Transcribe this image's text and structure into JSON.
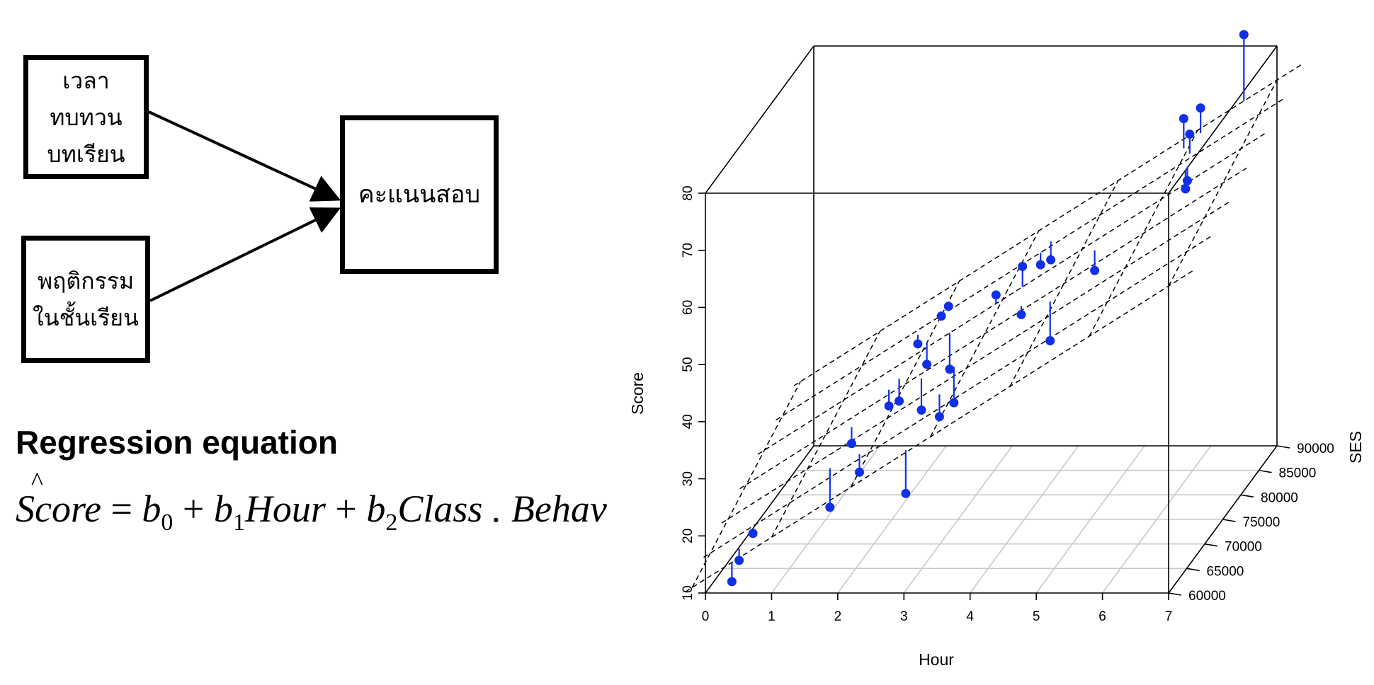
{
  "diagram": {
    "nodes": [
      {
        "id": "study_time",
        "lines": [
          "เวลา",
          "ทบทวน",
          "บทเรียน"
        ]
      },
      {
        "id": "class_behavior",
        "lines": [
          "พฤติกรรม",
          "ในชั้นเรียน"
        ]
      },
      {
        "id": "exam_score",
        "lines": [
          "คะแนนสอบ"
        ]
      }
    ],
    "edges": [
      {
        "from": "study_time",
        "to": "exam_score"
      },
      {
        "from": "class_behavior",
        "to": "exam_score"
      }
    ]
  },
  "equation": {
    "title": "Regression equation",
    "lhs": "Score",
    "equals": "=",
    "b0": "b",
    "b0_sub": "0",
    "plus1": "+",
    "b1": "b",
    "b1_sub": "1",
    "term1": "Hour",
    "plus2": "+",
    "b2": "b",
    "b2_sub": "2",
    "term2": "Class . Behav"
  },
  "chart_data": {
    "type": "scatter",
    "title": "",
    "xlabel": "Hour",
    "ylabel": "SES",
    "zlabel": "Score",
    "xlim": [
      0,
      7
    ],
    "ylim": [
      60000,
      90000
    ],
    "zlim": [
      10,
      80
    ],
    "x_ticks": [
      "0",
      "1",
      "2",
      "3",
      "4",
      "5",
      "6",
      "7"
    ],
    "y_ticks": [
      "60000",
      "65000",
      "70000",
      "75000",
      "80000",
      "85000",
      "90000"
    ],
    "z_ticks": [
      "10",
      "20",
      "30",
      "40",
      "50",
      "60",
      "70",
      "80"
    ],
    "point_color": "#1030e8",
    "regression_plane": true,
    "points": [
      {
        "x": 0.4,
        "y": 62000,
        "z": 14
      },
      {
        "x": 0.4,
        "y": 60000,
        "z": 12
      },
      {
        "x": 0.5,
        "y": 64000,
        "z": 17
      },
      {
        "x": 1.5,
        "y": 67000,
        "z": 19
      },
      {
        "x": 1.5,
        "y": 73000,
        "z": 25
      },
      {
        "x": 2.0,
        "y": 66000,
        "z": 26
      },
      {
        "x": 1.9,
        "y": 76000,
        "z": 29
      },
      {
        "x": 2.0,
        "y": 77000,
        "z": 29
      },
      {
        "x": 1.9,
        "y": 84000,
        "z": 33
      },
      {
        "x": 2.2,
        "y": 81000,
        "z": 32
      },
      {
        "x": 2.2,
        "y": 85000,
        "z": 37
      },
      {
        "x": 2.2,
        "y": 87000,
        "z": 37
      },
      {
        "x": 2.5,
        "y": 74000,
        "z": 30
      },
      {
        "x": 2.6,
        "y": 80000,
        "z": 32
      },
      {
        "x": 3.0,
        "y": 60500,
        "z": 27
      },
      {
        "x": 3.1,
        "y": 72000,
        "z": 33
      },
      {
        "x": 3.1,
        "y": 68000,
        "z": 34
      },
      {
        "x": 3.7,
        "y": 80000,
        "z": 50
      },
      {
        "x": 3.7,
        "y": 85000,
        "z": 46
      },
      {
        "x": 3.8,
        "y": 86000,
        "z": 46
      },
      {
        "x": 3.9,
        "y": 76000,
        "z": 45
      },
      {
        "x": 3.3,
        "y": 80000,
        "z": 45
      },
      {
        "x": 4.5,
        "y": 73000,
        "z": 43
      },
      {
        "x": 4.9,
        "y": 78000,
        "z": 51
      },
      {
        "x": 5.7,
        "y": 88000,
        "z": 69
      },
      {
        "x": 5.9,
        "y": 86000,
        "z": 68
      },
      {
        "x": 5.9,
        "y": 89000,
        "z": 70
      },
      {
        "x": 6.0,
        "y": 83000,
        "z": 61
      },
      {
        "x": 6.0,
        "y": 83500,
        "z": 62
      },
      {
        "x": 6.5,
        "y": 90000,
        "z": 82
      }
    ]
  }
}
